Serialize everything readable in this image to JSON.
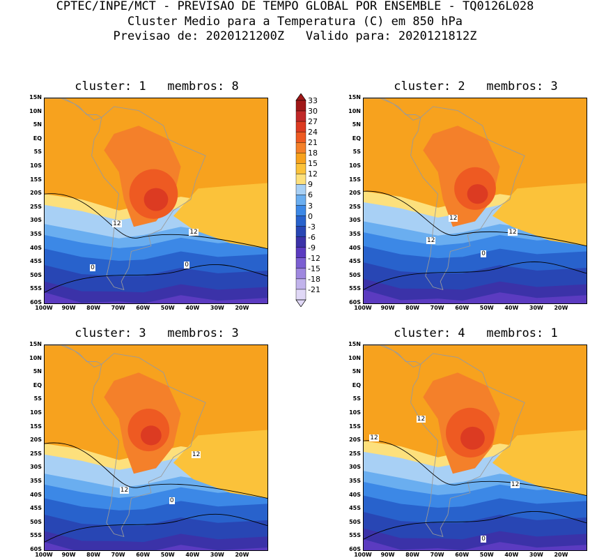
{
  "header": {
    "line1": "CPTEC/INPE/MCT - PREVISAO DE TEMPO GLOBAL POR ENSEMBLE - TQ0126L028",
    "line2": "Cluster Medio para a Temperatura (C) em 850 hPa",
    "line3": "Previsao de: 2020121200Z   Valido para: 2020121812Z"
  },
  "panels": [
    {
      "title": "cluster: 1   membros: 8",
      "contour_labels": [
        "12",
        "12",
        "0",
        "0"
      ]
    },
    {
      "title": "cluster: 2   membros: 3",
      "contour_labels": [
        "12",
        "12",
        "12",
        "0"
      ]
    },
    {
      "title": "cluster: 3   membros: 3",
      "contour_labels": [
        "12",
        "12",
        "0"
      ]
    },
    {
      "title": "cluster: 4   membros: 1",
      "contour_labels": [
        "12",
        "12",
        "12",
        "0"
      ]
    }
  ],
  "axes": {
    "y_ticks": [
      "15N",
      "10N",
      "5N",
      "EQ",
      "5S",
      "10S",
      "15S",
      "20S",
      "25S",
      "30S",
      "35S",
      "40S",
      "45S",
      "50S",
      "55S",
      "60S"
    ],
    "x_ticks": [
      "100W",
      "90W",
      "80W",
      "70W",
      "60W",
      "50W",
      "40W",
      "30W",
      "20W"
    ]
  },
  "colorbar": {
    "labels": [
      "33",
      "30",
      "27",
      "24",
      "21",
      "18",
      "15",
      "12",
      "9",
      "6",
      "3",
      "0",
      "-3",
      "-6",
      "-9",
      "-12",
      "-15",
      "-18",
      "-21"
    ],
    "colors": [
      "#a01818",
      "#c02828",
      "#dc3b22",
      "#ee5a22",
      "#f4802a",
      "#f7a21e",
      "#fbc23a",
      "#fde07c",
      "#a8d0f5",
      "#6aaef0",
      "#3c88e6",
      "#2862cc",
      "#2846b4",
      "#3b32a8",
      "#5b3bc0",
      "#7b5fd2",
      "#9f88df",
      "#c1b3eb",
      "#e0d8f6"
    ],
    "units": "C"
  },
  "map": {
    "lon_range": [
      -100,
      -10
    ],
    "lat_range": [
      -60,
      15
    ]
  }
}
